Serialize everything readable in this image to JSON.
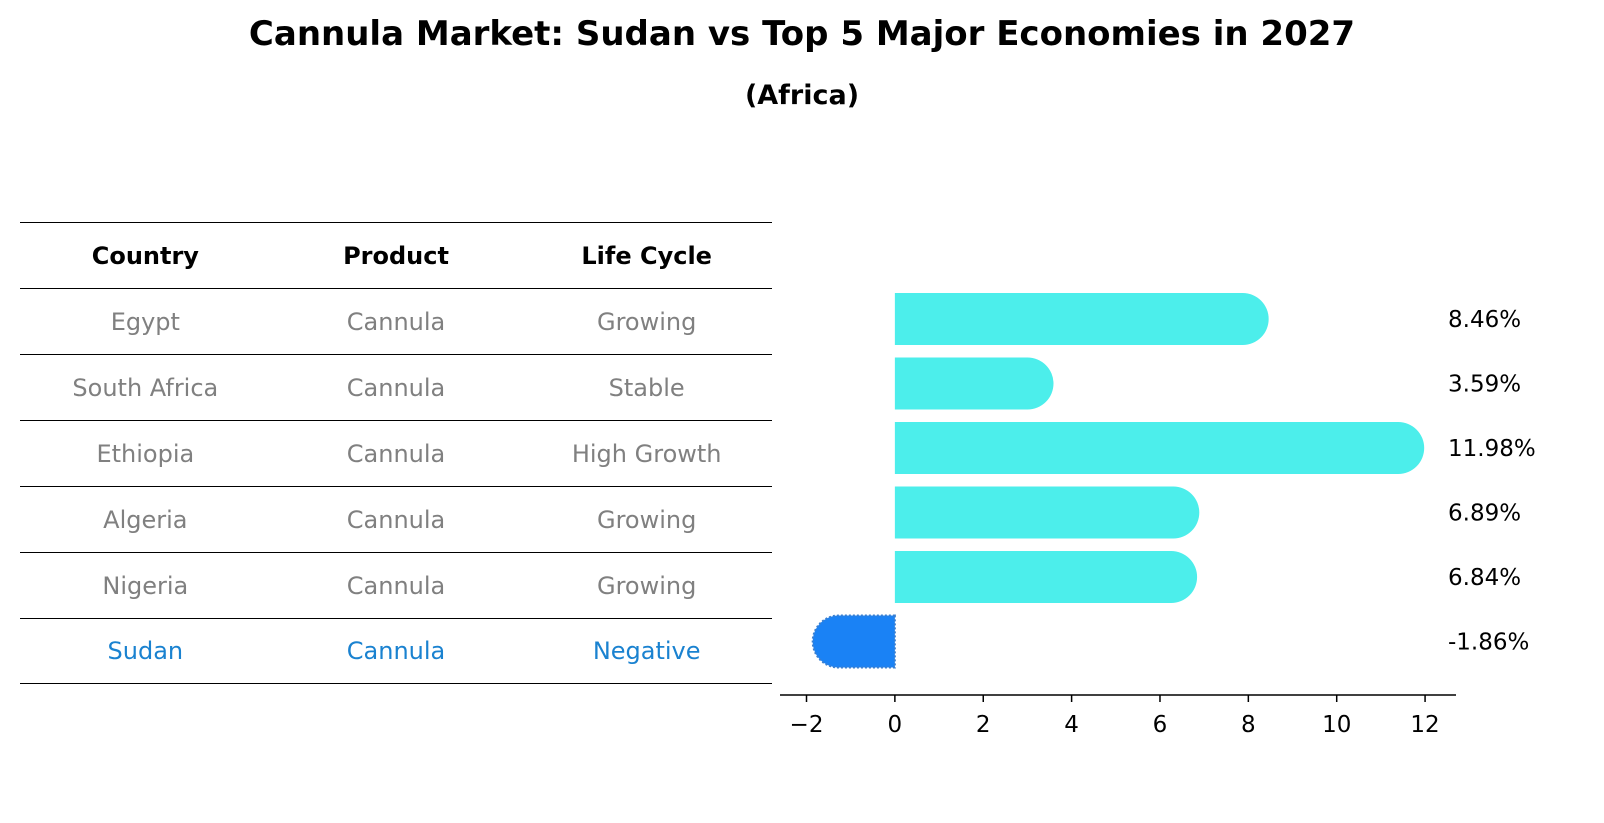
{
  "header": {
    "title": "Cannula Market: Sudan vs Top 5 Major Economies in 2027",
    "subtitle": "(Africa)"
  },
  "table": {
    "columns": [
      "Country",
      "Product",
      "Life Cycle"
    ],
    "rows": [
      [
        "Egypt",
        "Cannula",
        "Growing"
      ],
      [
        "South Africa",
        "Cannula",
        "Stable"
      ],
      [
        "Ethiopia",
        "Cannula",
        "High Growth"
      ],
      [
        "Algeria",
        "Cannula",
        "Growing"
      ],
      [
        "Nigeria",
        "Cannula",
        "Growing"
      ],
      [
        "Sudan",
        "Cannula",
        "Negative"
      ]
    ],
    "highlight_color": "#1a82d0",
    "text_color": "#808080"
  },
  "chart_data": {
    "type": "bar",
    "orientation": "horizontal",
    "categories": [
      "Egypt",
      "South Africa",
      "Ethiopia",
      "Algeria",
      "Nigeria",
      "Sudan"
    ],
    "values": [
      8.46,
      3.59,
      11.98,
      6.89,
      6.84,
      -1.86
    ],
    "value_labels": [
      "8.46%",
      "3.59%",
      "11.98%",
      "6.89%",
      "6.84%",
      "-1.86%"
    ],
    "xlim": [
      -2.6,
      12.7
    ],
    "xticks": [
      -2,
      0,
      2,
      4,
      6,
      8,
      10,
      12
    ],
    "xtick_labels": [
      "−2",
      "0",
      "2",
      "4",
      "6",
      "8",
      "10",
      "12"
    ],
    "colors": {
      "positive": "#4ceeeb",
      "highlight": "#1a82f5"
    },
    "grid": false
  }
}
